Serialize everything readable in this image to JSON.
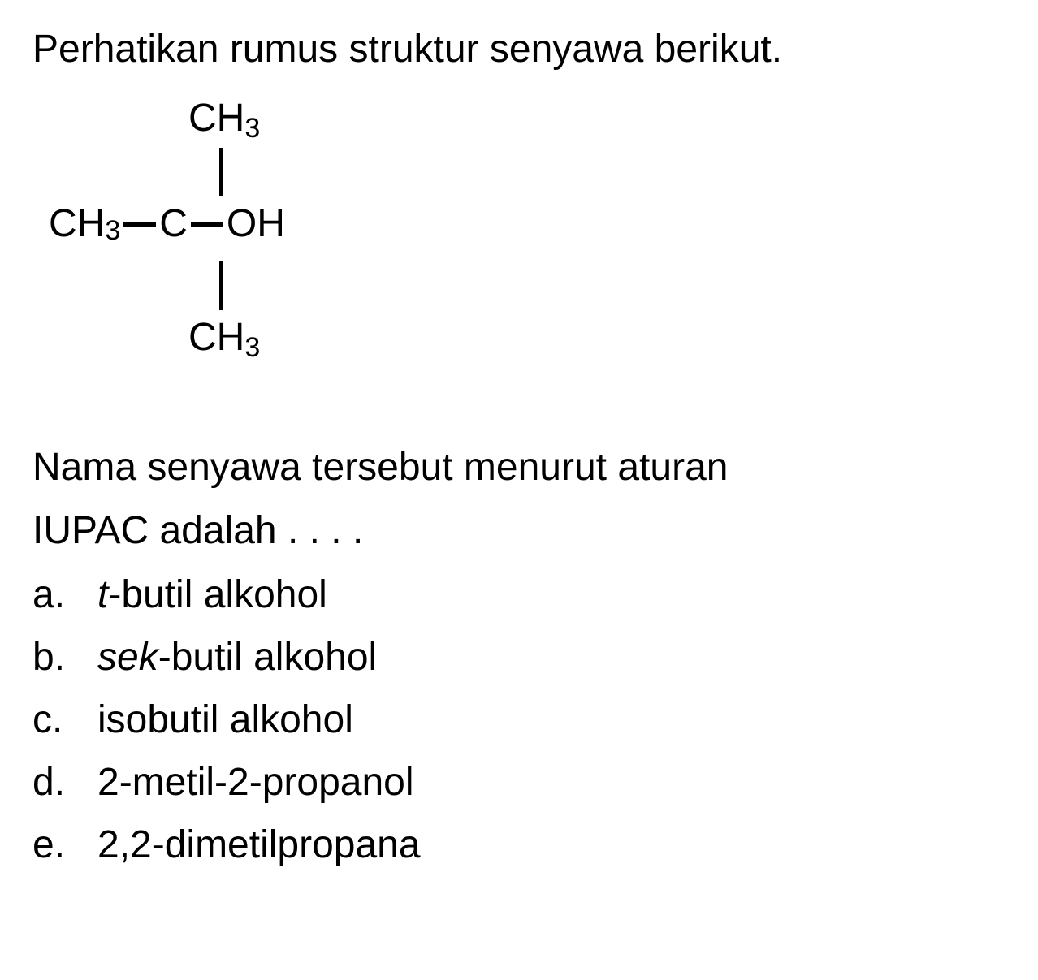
{
  "question": {
    "intro": "Perhatikan rumus struktur senyawa berikut.",
    "continue_line1": "Nama senyawa tersebut menurut aturan",
    "continue_line2": "IUPAC adalah . . . ."
  },
  "structure": {
    "top_ch": "CH",
    "top_sub": "3",
    "left_ch": "CH",
    "left_sub": "3",
    "center_c": "C",
    "right_oh": "OH",
    "bottom_ch": "CH",
    "bottom_sub": "3",
    "bond_color": "#000000",
    "text_color": "#000000",
    "font_size": 48
  },
  "options": {
    "a": {
      "letter": "a.",
      "prefix_italic": "t",
      "text": "-butil alkohol"
    },
    "b": {
      "letter": "b.",
      "prefix_italic": "sek",
      "text": "-butil alkohol"
    },
    "c": {
      "letter": "c.",
      "text": "isobutil alkohol"
    },
    "d": {
      "letter": "d.",
      "text": "2-metil-2-propanol"
    },
    "e": {
      "letter": "e.",
      "text": "2,2-dimetilpropana"
    }
  },
  "style": {
    "background_color": "#ffffff",
    "text_color": "#000000",
    "font_size": 48,
    "sub_font_size": 34
  }
}
